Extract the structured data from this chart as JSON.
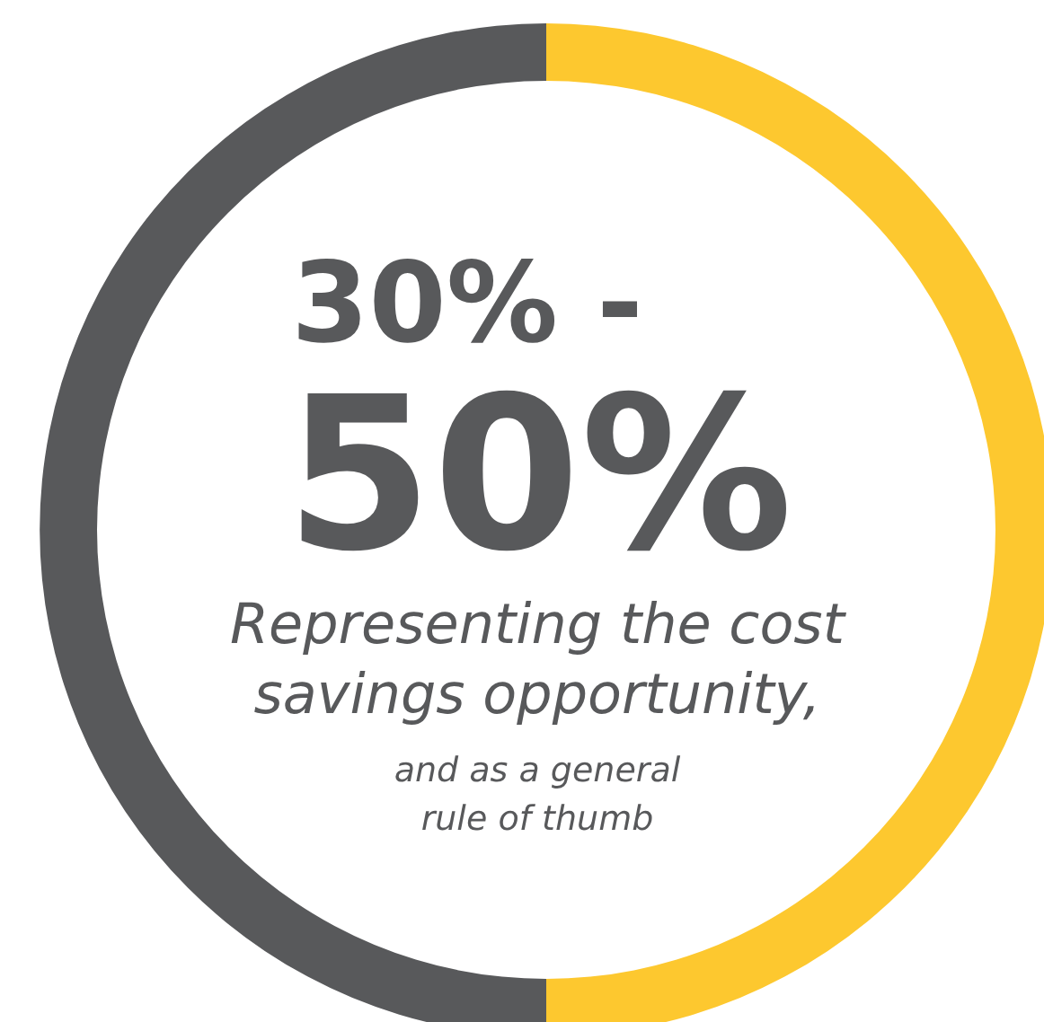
{
  "chart_data": {
    "type": "donut",
    "categories": [
      null,
      null
    ],
    "values": [
      50,
      50
    ],
    "colors": [
      "#fdc82f",
      "#58595b"
    ],
    "annotations": [
      "30% -",
      "50%",
      "Representing the cost",
      "savings opportunity,",
      "and as a general",
      "rule of thumb"
    ]
  }
}
